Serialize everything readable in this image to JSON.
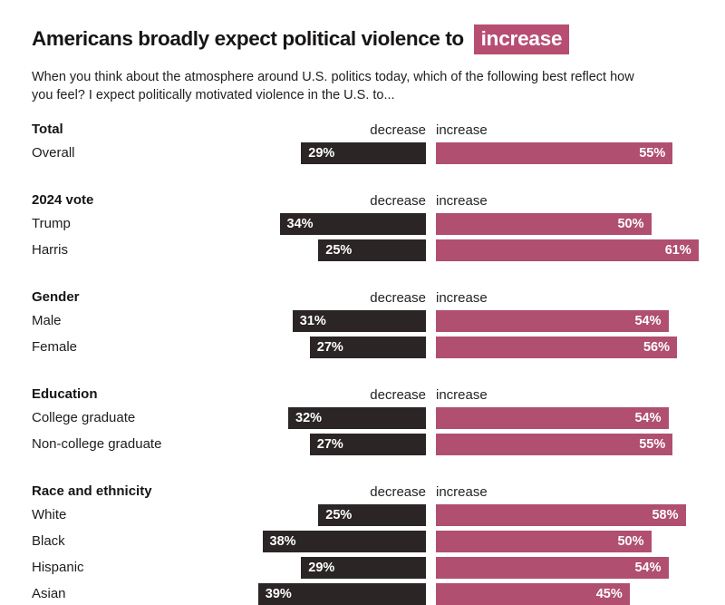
{
  "title": {
    "text": "Americans broadly expect political violence to",
    "highlight": "increase"
  },
  "subtitle_lines": [
    "When you think about the atmosphere around U.S. politics today, which of the following best reflect how",
    "you feel? I expect politically motivated violence in the U.S. to..."
  ],
  "axis_labels": {
    "decrease": "decrease",
    "increase": "increase"
  },
  "colors": {
    "decrease_bar": "#2b2526",
    "increase_bar": "#b04f70",
    "title_highlight_bg": "#b74d72",
    "title_highlight_text": "#ffffff"
  },
  "chart_data": {
    "type": "bar",
    "subtype": "diverging-grouped-horizontal",
    "unit": "%",
    "series": [
      "decrease",
      "increase"
    ],
    "value_range": [
      0,
      100
    ],
    "legend_position": "column-headers-per-group",
    "grid": false,
    "groups": [
      {
        "label": "Total",
        "rows": [
          {
            "label": "Overall",
            "decrease": 29,
            "increase": 55
          }
        ]
      },
      {
        "label": "2024 vote",
        "rows": [
          {
            "label": "Trump",
            "decrease": 34,
            "increase": 50
          },
          {
            "label": "Harris",
            "decrease": 25,
            "increase": 61
          }
        ]
      },
      {
        "label": "Gender",
        "rows": [
          {
            "label": "Male",
            "decrease": 31,
            "increase": 54
          },
          {
            "label": "Female",
            "decrease": 27,
            "increase": 56
          }
        ]
      },
      {
        "label": "Education",
        "rows": [
          {
            "label": "College graduate",
            "decrease": 32,
            "increase": 54
          },
          {
            "label": "Non-college graduate",
            "decrease": 27,
            "increase": 55
          }
        ]
      },
      {
        "label": "Race and ethnicity",
        "rows": [
          {
            "label": "White",
            "decrease": 25,
            "increase": 58
          },
          {
            "label": "Black",
            "decrease": 38,
            "increase": 50
          },
          {
            "label": "Hispanic",
            "decrease": 29,
            "increase": 54
          },
          {
            "label": "Asian",
            "decrease": 39,
            "increase": 45
          }
        ]
      }
    ]
  }
}
